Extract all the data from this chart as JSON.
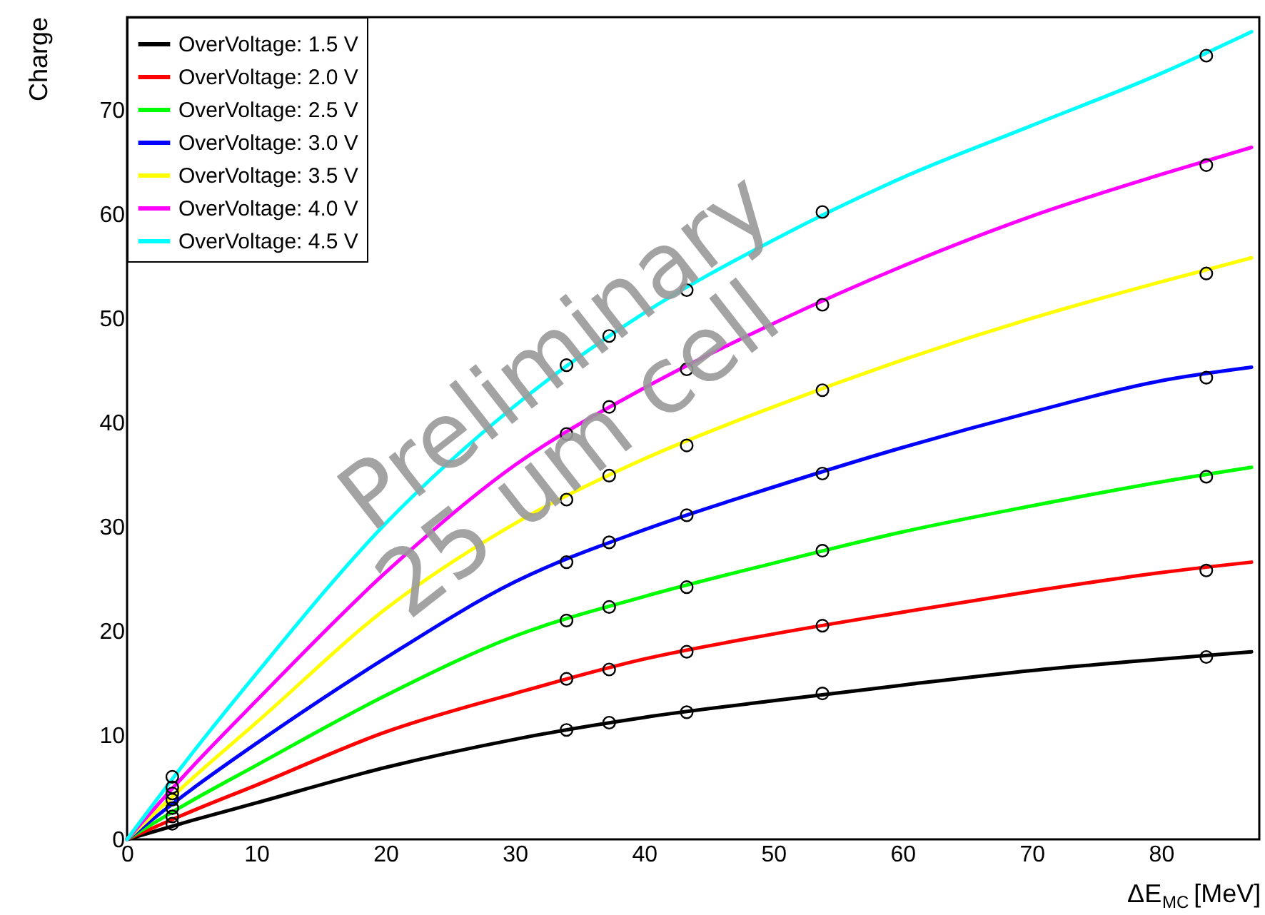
{
  "chart_data": {
    "type": "line",
    "xlabel": "ΔE$_{MC}$ [MeV]",
    "ylabel": "Charge",
    "annotations": [
      "Preliminary",
      "25 um cell"
    ],
    "xlim": [
      0,
      87.6
    ],
    "ylim": [
      0,
      78.9
    ],
    "xticks": [
      0,
      10,
      20,
      30,
      40,
      50,
      60,
      70,
      80
    ],
    "yticks": [
      0,
      10,
      20,
      30,
      40,
      50,
      60,
      70
    ],
    "grid": false,
    "legend": "top left",
    "line_style": "solid",
    "series": [
      {
        "name": "OverVoltage: 1.5 V",
        "color": "#000000",
        "x": [
          0,
          5,
          10,
          20,
          30,
          40,
          50,
          60,
          70,
          80,
          87
        ],
        "values": [
          0,
          1.8,
          3.5,
          6.9,
          9.6,
          11.7,
          13.3,
          14.8,
          16.2,
          17.3,
          18.0
        ]
      },
      {
        "name": "OverVoltage: 2.0 V",
        "color": "#ff0000",
        "x": [
          0,
          5,
          10,
          20,
          30,
          40,
          50,
          60,
          70,
          80,
          87
        ],
        "values": [
          0,
          2.7,
          5.2,
          10.3,
          14.0,
          17.3,
          19.7,
          21.8,
          23.8,
          25.6,
          26.6
        ]
      },
      {
        "name": "OverVoltage: 2.5 V",
        "color": "#00ff00",
        "x": [
          0,
          5,
          10,
          20,
          30,
          40,
          50,
          60,
          70,
          80,
          87
        ],
        "values": [
          0,
          3.7,
          7.1,
          13.8,
          19.5,
          23.3,
          26.5,
          29.5,
          32.0,
          34.3,
          35.7
        ]
      },
      {
        "name": "OverVoltage: 3.0 V",
        "color": "#0000ff",
        "x": [
          0,
          5,
          10,
          20,
          30,
          40,
          50,
          60,
          70,
          80,
          87
        ],
        "values": [
          0,
          4.8,
          9.2,
          17.4,
          24.7,
          29.7,
          33.8,
          37.6,
          41.0,
          44.0,
          45.3
        ]
      },
      {
        "name": "OverVoltage: 3.5 V",
        "color": "#ffff00",
        "x": [
          0,
          5,
          10,
          20,
          30,
          40,
          50,
          60,
          70,
          80,
          87
        ],
        "values": [
          0,
          5.8,
          11.2,
          22.1,
          30.3,
          36.5,
          41.5,
          46.0,
          50.0,
          53.5,
          55.8
        ]
      },
      {
        "name": "OverVoltage: 4.0 V",
        "color": "#ff00ff",
        "x": [
          0,
          5,
          10,
          20,
          30,
          40,
          50,
          60,
          70,
          80,
          87
        ],
        "values": [
          0,
          6.9,
          13.3,
          25.6,
          35.9,
          43.3,
          49.5,
          55.0,
          59.8,
          63.8,
          66.4
        ]
      },
      {
        "name": "OverVoltage: 4.5 V",
        "color": "#00ffff",
        "x": [
          0,
          5,
          10,
          20,
          30,
          40,
          50,
          60,
          70,
          80,
          87
        ],
        "values": [
          0,
          8.2,
          15.9,
          30.3,
          41.6,
          50.5,
          57.5,
          63.5,
          68.5,
          73.5,
          77.5
        ]
      },
      {
        "color": "#000000",
        "type": "scatter",
        "x": [
          3.5,
          34,
          37.3,
          43.3,
          53.8,
          83.5
        ],
        "values": [
          1.5,
          10.5,
          11.2,
          12.2,
          14.0,
          17.5
        ],
        "marker": "circle"
      },
      {
        "color": "#000000",
        "type": "scatter",
        "x": [
          3.5,
          34,
          37.3,
          43.3,
          53.8,
          83.5
        ],
        "values": [
          2.2,
          15.4,
          16.3,
          18.0,
          20.5,
          25.8
        ],
        "marker": "circle"
      },
      {
        "color": "#000000",
        "type": "scatter",
        "x": [
          3.5,
          34,
          37.3,
          43.3,
          53.8,
          83.5
        ],
        "values": [
          3.0,
          21.0,
          22.3,
          24.2,
          27.7,
          34.8
        ],
        "marker": "circle"
      },
      {
        "color": "#000000",
        "type": "scatter",
        "x": [
          3.5,
          34,
          37.3,
          43.3,
          53.8,
          83.5
        ],
        "values": [
          3.8,
          26.6,
          28.5,
          31.1,
          35.1,
          44.3
        ],
        "marker": "circle"
      },
      {
        "color": "#000000",
        "type": "scatter",
        "x": [
          3.5,
          34,
          37.3,
          43.3,
          53.8,
          83.5
        ],
        "values": [
          4.4,
          32.6,
          34.9,
          37.8,
          43.1,
          54.3
        ],
        "marker": "circle"
      },
      {
        "color": "#000000",
        "type": "scatter",
        "x": [
          3.5,
          34,
          37.3,
          43.3,
          53.8,
          83.5
        ],
        "values": [
          5.0,
          38.9,
          41.5,
          45.1,
          51.3,
          64.7
        ],
        "marker": "circle"
      },
      {
        "color": "#000000",
        "type": "scatter",
        "x": [
          3.5,
          34,
          37.3,
          43.3,
          53.8,
          83.5
        ],
        "values": [
          6.0,
          45.5,
          48.3,
          52.7,
          60.2,
          75.2
        ],
        "marker": "circle"
      }
    ]
  }
}
